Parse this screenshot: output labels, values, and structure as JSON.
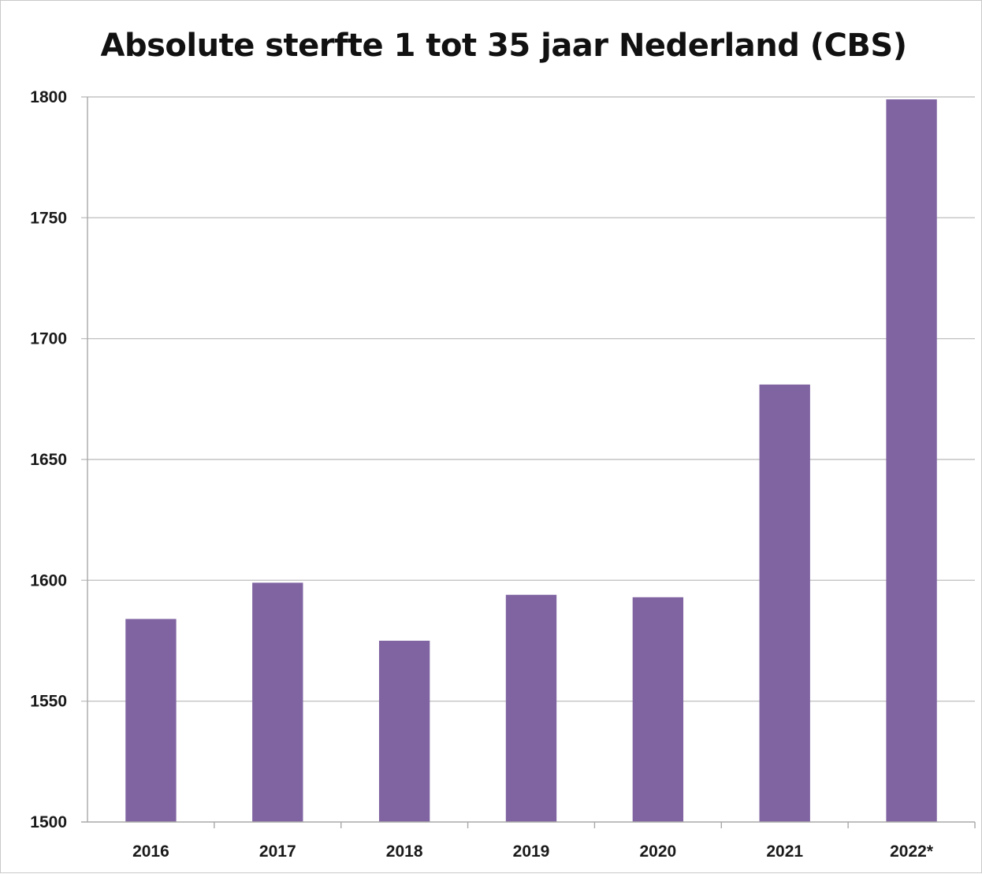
{
  "chart_data": {
    "type": "bar",
    "title": "Absolute sterfte 1 tot 35 jaar Nederland (CBS)",
    "xlabel": "",
    "ylabel": "",
    "categories": [
      "2016",
      "2017",
      "2018",
      "2019",
      "2020",
      "2021",
      "2022*"
    ],
    "values": [
      1584,
      1599,
      1575,
      1594,
      1593,
      1681,
      1799
    ],
    "ylim": [
      1500,
      1800
    ],
    "yticks": [
      1500,
      1550,
      1600,
      1650,
      1700,
      1750,
      1800
    ],
    "ytick_labels": [
      "1500",
      "1550",
      "1600",
      "1650",
      "1700",
      "1750",
      "1800"
    ],
    "grid": true,
    "legend": "none",
    "bar_color": "#8064a2"
  }
}
